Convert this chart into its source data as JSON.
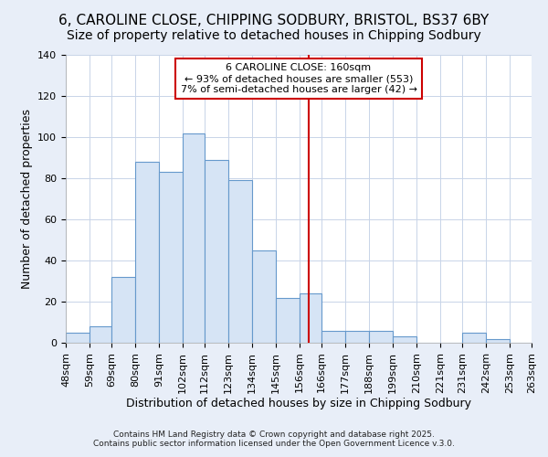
{
  "title1": "6, CAROLINE CLOSE, CHIPPING SODBURY, BRISTOL, BS37 6BY",
  "title2": "Size of property relative to detached houses in Chipping Sodbury",
  "xlabel": "Distribution of detached houses by size in Chipping Sodbury",
  "ylabel": "Number of detached properties",
  "bin_edges": [
    48,
    59,
    69,
    80,
    91,
    102,
    112,
    123,
    134,
    145,
    156,
    166,
    177,
    188,
    199,
    210,
    221,
    231,
    242,
    253,
    263
  ],
  "bar_heights": [
    5,
    8,
    32,
    88,
    83,
    102,
    89,
    79,
    45,
    22,
    24,
    6,
    6,
    6,
    3,
    0,
    0,
    5,
    2,
    0
  ],
  "bar_color": "#d6e4f5",
  "bar_edge_color": "#6699cc",
  "property_line_x": 160,
  "property_line_color": "#cc0000",
  "annotation_title": "6 CAROLINE CLOSE: 160sqm",
  "annotation_lines": [
    "← 93% of detached houses are smaller (553)",
    "7% of semi-detached houses are larger (42) →"
  ],
  "annotation_box_facecolor": "#ffffff",
  "annotation_border_color": "#cc0000",
  "ylim": [
    0,
    140
  ],
  "xlim": [
    48,
    263
  ],
  "plot_bg_color": "#ffffff",
  "fig_bg_color": "#e8eef8",
  "grid_color": "#c8d4e8",
  "footer1": "Contains HM Land Registry data © Crown copyright and database right 2025.",
  "footer2": "Contains public sector information licensed under the Open Government Licence v.3.0.",
  "title1_fontsize": 11,
  "title2_fontsize": 10,
  "xlabel_fontsize": 9,
  "ylabel_fontsize": 9,
  "tick_fontsize": 8,
  "annotation_fontsize": 8,
  "yticks": [
    0,
    20,
    40,
    60,
    80,
    100,
    120,
    140
  ]
}
